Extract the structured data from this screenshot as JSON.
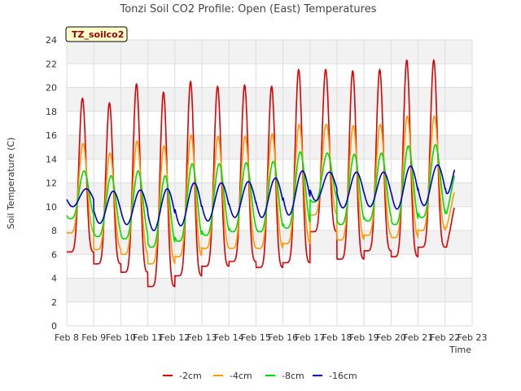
{
  "chart_data": {
    "type": "line",
    "title": "Tonzi Soil CO2 Profile: Open (East) Temperatures",
    "xlabel": "Time",
    "ylabel": "Soil Temperature (C)",
    "badge": "TZ_soilco2",
    "ylim": [
      0,
      24
    ],
    "yticks": [
      0,
      2,
      4,
      6,
      8,
      10,
      12,
      14,
      16,
      18,
      20,
      22,
      24
    ],
    "xlim": [
      "Feb 8",
      "Feb 23"
    ],
    "xticks": [
      "Feb 8",
      "Feb 9",
      "Feb 10",
      "Feb 11",
      "Feb 12",
      "Feb 13",
      "Feb 14",
      "Feb 15",
      "Feb 16",
      "Feb 17",
      "Feb 18",
      "Feb 19",
      "Feb 20",
      "Feb 21",
      "Feb 22",
      "Feb 23"
    ],
    "grid": true,
    "legend_position": "bottom",
    "series": [
      {
        "name": "-2cm",
        "color": "#dd0000",
        "x": [
          "Feb 8",
          "Feb 9",
          "Feb 10",
          "Feb 11",
          "Feb 12",
          "Feb 13",
          "Feb 14",
          "Feb 15",
          "Feb 16",
          "Feb 17",
          "Feb 18",
          "Feb 19",
          "Feb 20",
          "Feb 21",
          "Feb 22"
        ],
        "daily_min": [
          6.2,
          5.2,
          4.5,
          3.3,
          4.2,
          5.0,
          5.4,
          4.9,
          5.3,
          7.9,
          5.6,
          6.3,
          5.8,
          6.6,
          6.6
        ],
        "daily_max": [
          19.1,
          18.7,
          20.3,
          19.6,
          20.5,
          20.1,
          20.2,
          20.1,
          21.5,
          21.5,
          21.4,
          21.5,
          22.3,
          22.3,
          22.3
        ],
        "end_value": 9.9
      },
      {
        "name": "-4cm",
        "color": "#ff9900",
        "x": [
          "Feb 8",
          "Feb 9",
          "Feb 10",
          "Feb 11",
          "Feb 12",
          "Feb 13",
          "Feb 14",
          "Feb 15",
          "Feb 16",
          "Feb 17",
          "Feb 18",
          "Feb 19",
          "Feb 20",
          "Feb 21",
          "Feb 22"
        ],
        "daily_min": [
          7.8,
          6.4,
          6.0,
          5.2,
          5.8,
          6.5,
          6.5,
          6.5,
          6.9,
          9.3,
          7.2,
          7.6,
          7.4,
          8.0,
          8.2
        ],
        "daily_max": [
          15.3,
          14.5,
          15.5,
          15.1,
          16.0,
          15.9,
          15.9,
          16.1,
          16.9,
          16.9,
          16.8,
          16.9,
          17.6,
          17.6,
          17.6
        ],
        "end_value": 11.2
      },
      {
        "name": "-8cm",
        "color": "#00dd00",
        "x": [
          "Feb 8",
          "Feb 9",
          "Feb 10",
          "Feb 11",
          "Feb 12",
          "Feb 13",
          "Feb 14",
          "Feb 15",
          "Feb 16",
          "Feb 17",
          "Feb 18",
          "Feb 19",
          "Feb 20",
          "Feb 21",
          "Feb 22"
        ],
        "daily_min": [
          9.0,
          7.5,
          7.3,
          6.6,
          7.1,
          7.6,
          7.9,
          7.9,
          8.2,
          10.4,
          8.5,
          8.8,
          8.5,
          9.1,
          9.3
        ],
        "daily_max": [
          13.0,
          12.6,
          13.0,
          12.6,
          13.6,
          13.6,
          13.7,
          13.8,
          14.6,
          14.5,
          14.4,
          14.5,
          15.1,
          15.2,
          15.2
        ],
        "end_value": 12.6
      },
      {
        "name": "-16cm",
        "color": "#0000cc",
        "x": [
          "Feb 8",
          "Feb 9",
          "Feb 10",
          "Feb 11",
          "Feb 12",
          "Feb 13",
          "Feb 14",
          "Feb 15",
          "Feb 16",
          "Feb 17",
          "Feb 18",
          "Feb 19",
          "Feb 20",
          "Feb 21",
          "Feb 22"
        ],
        "daily_min": [
          10.0,
          8.6,
          8.5,
          8.0,
          8.4,
          8.8,
          9.1,
          9.1,
          9.3,
          10.5,
          9.9,
          10.0,
          9.8,
          10.1,
          10.3
        ],
        "daily_max": [
          11.5,
          11.3,
          11.4,
          11.5,
          12.0,
          12.0,
          12.1,
          12.4,
          13.0,
          12.9,
          12.9,
          12.9,
          13.4,
          13.5,
          13.5
        ],
        "end_value": 13.1
      }
    ]
  }
}
